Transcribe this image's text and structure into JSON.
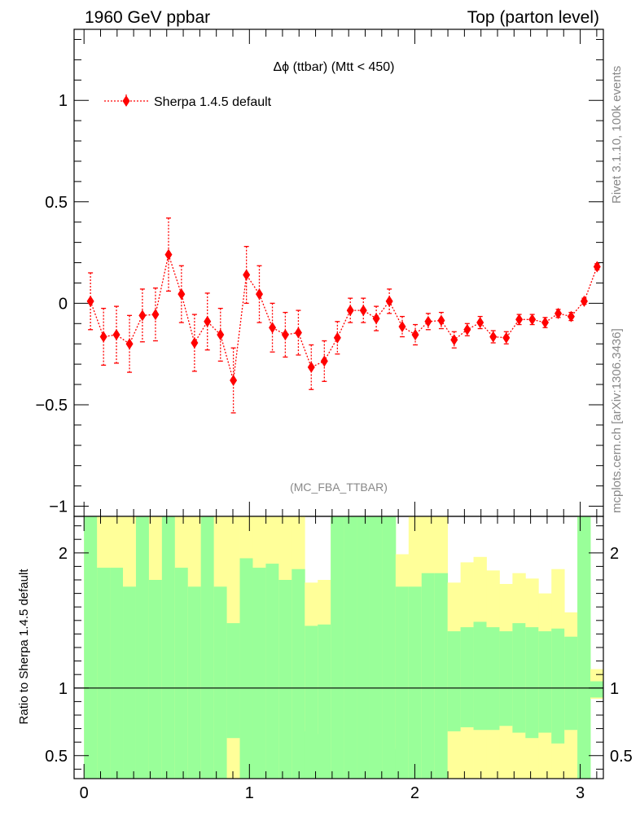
{
  "header": {
    "left": "1960 GeV ppbar",
    "right": "Top (parton level)"
  },
  "side_text": {
    "rivet": "Rivet 3.1.10,  100k events",
    "mcplots": "mcplots.cern.ch [arXiv:1306.3436]"
  },
  "watermark": "(MC_FBA_TTBAR)",
  "colors": {
    "mc": "#ff0000",
    "band_inner": "#99ff99",
    "band_outer": "#ffff99",
    "ref_line": "#000000"
  },
  "chart_data": [
    {
      "type": "scatter",
      "title": "Δϕ (ttbar) (Mtt < 450)",
      "xlabel": "",
      "ylabel": "",
      "xlim": [
        -0.06,
        3.14
      ],
      "ylim": [
        -1.05,
        1.35
      ],
      "yticks": [
        -1,
        -0.5,
        0,
        0.5,
        1
      ],
      "ytick_labels": [
        "−1",
        "−0.5",
        "0",
        "0.5",
        "1"
      ],
      "legend": {
        "position": "top-left",
        "entries": [
          "Sherpa 1.4.5 default"
        ]
      },
      "series": [
        {
          "name": "Sherpa 1.4.5 default",
          "style": "dotted line with diamond markers and error bars",
          "x": [
            0.039,
            0.118,
            0.196,
            0.275,
            0.353,
            0.432,
            0.511,
            0.589,
            0.668,
            0.746,
            0.825,
            0.903,
            0.982,
            1.06,
            1.139,
            1.217,
            1.296,
            1.374,
            1.453,
            1.532,
            1.61,
            1.689,
            1.767,
            1.846,
            1.924,
            2.003,
            2.081,
            2.16,
            2.238,
            2.317,
            2.395,
            2.474,
            2.553,
            2.631,
            2.71,
            2.788,
            2.867,
            2.945,
            3.024,
            3.102
          ],
          "y": [
            0.01,
            -0.165,
            -0.155,
            -0.2,
            -0.06,
            -0.055,
            0.24,
            0.045,
            -0.195,
            -0.09,
            -0.155,
            -0.38,
            0.14,
            0.045,
            -0.12,
            -0.155,
            -0.145,
            -0.315,
            -0.285,
            -0.17,
            -0.035,
            -0.035,
            -0.075,
            0.01,
            -0.115,
            -0.155,
            -0.09,
            -0.085,
            -0.18,
            -0.13,
            -0.095,
            -0.165,
            -0.17,
            -0.08,
            -0.08,
            -0.095,
            -0.05,
            -0.065,
            0.01,
            0.18
          ],
          "yerr": [
            0.14,
            0.14,
            0.14,
            0.14,
            0.13,
            0.13,
            0.18,
            0.14,
            0.14,
            0.14,
            0.13,
            0.16,
            0.14,
            0.14,
            0.12,
            0.11,
            0.11,
            0.11,
            0.1,
            0.08,
            0.06,
            0.06,
            0.06,
            0.06,
            0.05,
            0.05,
            0.04,
            0.04,
            0.04,
            0.03,
            0.03,
            0.03,
            0.03,
            0.025,
            0.025,
            0.025,
            0.02,
            0.02,
            0.015,
            0.015
          ]
        }
      ]
    },
    {
      "type": "area",
      "ylabel": "Ratio to Sherpa 1.4.5 default",
      "xlim": [
        -0.06,
        3.14
      ],
      "ylim": [
        0.33,
        2.27
      ],
      "xticks": [
        0,
        1,
        2,
        3
      ],
      "xtick_labels": [
        "0",
        "1",
        "2",
        "3"
      ],
      "yticks": [
        0.5,
        1,
        2
      ],
      "ytick_labels": [
        "0.5",
        "1",
        "2"
      ],
      "reference_line": 1,
      "bins": [
        0.0,
        0.0785,
        0.157,
        0.2355,
        0.314,
        0.3925,
        0.471,
        0.5495,
        0.628,
        0.7065,
        0.785,
        0.8635,
        0.942,
        1.0205,
        1.099,
        1.1775,
        1.256,
        1.3345,
        1.413,
        1.4915,
        1.57,
        1.6485,
        1.727,
        1.8055,
        1.884,
        1.9625,
        2.041,
        2.1195,
        2.198,
        2.2765,
        2.355,
        2.4335,
        2.512,
        2.5905,
        2.669,
        2.7475,
        2.826,
        2.9045,
        2.983,
        3.0615,
        3.14
      ],
      "band_inner_up": [
        2.5,
        1.89,
        1.89,
        1.75,
        2.5,
        1.8,
        2.5,
        1.89,
        1.75,
        2.5,
        1.75,
        1.48,
        1.96,
        1.89,
        1.92,
        1.8,
        1.88,
        1.46,
        1.47,
        2.5,
        2.5,
        2.5,
        2.5,
        2.5,
        1.75,
        1.75,
        1.85,
        1.85,
        1.42,
        1.45,
        1.49,
        1.45,
        1.42,
        1.48,
        1.45,
        1.42,
        1.44,
        1.38,
        2.5,
        1.05
      ],
      "band_outer_up": [
        2.5,
        2.5,
        2.5,
        2.5,
        2.5,
        2.5,
        2.5,
        2.5,
        2.5,
        2.5,
        2.5,
        2.5,
        2.5,
        2.5,
        2.5,
        2.5,
        2.5,
        1.78,
        1.8,
        2.5,
        2.5,
        2.5,
        2.5,
        2.5,
        1.99,
        2.5,
        2.5,
        2.5,
        1.78,
        1.93,
        1.97,
        1.87,
        1.77,
        1.85,
        1.81,
        1.7,
        1.88,
        1.56,
        2.5,
        1.14
      ],
      "band_inner_down": [
        0.2,
        0.2,
        0.2,
        0.2,
        0.2,
        0.2,
        0.2,
        0.2,
        0.2,
        0.2,
        0.2,
        0.63,
        0.2,
        0.2,
        0.2,
        0.2,
        0.2,
        0.2,
        0.2,
        0.2,
        0.2,
        0.2,
        0.2,
        0.2,
        0.2,
        0.2,
        0.2,
        0.2,
        0.68,
        0.71,
        0.69,
        0.69,
        0.72,
        0.67,
        0.63,
        0.67,
        0.59,
        0.69,
        0.2,
        0.93
      ],
      "band_outer_down": [
        0.2,
        0.2,
        0.2,
        0.2,
        0.2,
        0.2,
        0.2,
        0.2,
        0.2,
        0.2,
        0.2,
        0.2,
        0.2,
        0.2,
        0.2,
        0.2,
        0.2,
        0.68,
        0.66,
        0.2,
        0.2,
        0.2,
        0.2,
        0.2,
        0.55,
        0.2,
        0.2,
        0.2,
        0.2,
        0.2,
        0.2,
        0.2,
        0.2,
        0.2,
        0.2,
        0.2,
        0.2,
        0.2,
        0.2,
        0.92
      ]
    }
  ]
}
